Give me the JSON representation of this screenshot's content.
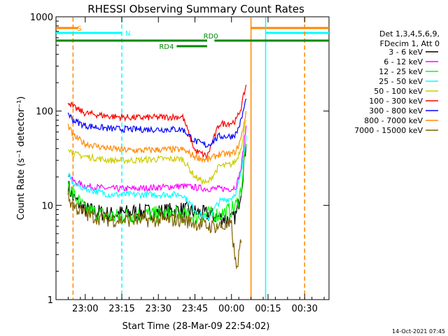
{
  "chart_data": {
    "type": "line",
    "title": "RHESSI Observing Summary Count Rates",
    "xlabel": "Start Time (28-Mar-09 22:54:02)",
    "ylabel": "Count Rate (s⁻¹ detector⁻¹)",
    "yscale": "log",
    "xlim": [
      -12,
      100
    ],
    "ylim": [
      1,
      1000
    ],
    "x_units": "minutes after 23:00",
    "x_ticks": [
      {
        "value": 0,
        "label": "23:00"
      },
      {
        "value": 15,
        "label": "23:15"
      },
      {
        "value": 30,
        "label": "23:30"
      },
      {
        "value": 45,
        "label": "23:45"
      },
      {
        "value": 60,
        "label": "00:00"
      },
      {
        "value": 75,
        "label": "00:15"
      },
      {
        "value": 90,
        "label": "00:30"
      }
    ],
    "y_ticks": [
      {
        "value": 1,
        "label": "1"
      },
      {
        "value": 10,
        "label": "10"
      },
      {
        "value": 100,
        "label": "100"
      },
      {
        "value": 1000,
        "label": "1000"
      }
    ],
    "legend": {
      "placement": "right",
      "header": [
        "Det 1,3,4,5,6,9,",
        "FDecim 1, Att 0"
      ]
    },
    "series": [
      {
        "name": "3 - 6 keV",
        "color": "#000000",
        "x": [
          -7,
          -5,
          0,
          10,
          20,
          30,
          40,
          45,
          50,
          55,
          60,
          62,
          64,
          66
        ],
        "y": [
          16,
          12,
          9,
          8,
          8.5,
          8.5,
          9,
          8.5,
          8,
          7.5,
          7,
          8,
          15,
          45
        ]
      },
      {
        "name": "6 - 12 keV",
        "color": "#ff00ff",
        "x": [
          -7,
          -5,
          0,
          10,
          20,
          30,
          40,
          45,
          50,
          55,
          60,
          62,
          64,
          66
        ],
        "y": [
          22,
          18,
          16,
          15,
          15,
          15.5,
          16,
          15.5,
          15,
          15,
          15,
          16,
          25,
          70
        ]
      },
      {
        "name": "12 - 25 keV",
        "color": "#00ff00",
        "x": [
          -7,
          -5,
          0,
          10,
          20,
          30,
          40,
          45,
          50,
          55,
          60,
          62,
          64,
          66
        ],
        "y": [
          17,
          13,
          9,
          7.5,
          8,
          8,
          8,
          7.5,
          8,
          8,
          9,
          10,
          15,
          45
        ]
      },
      {
        "name": "25 - 50 keV",
        "color": "#00ffff",
        "x": [
          -7,
          -5,
          0,
          10,
          20,
          30,
          40,
          45,
          50,
          55,
          60,
          62,
          64,
          66
        ],
        "y": [
          21,
          17,
          15,
          13,
          13,
          13,
          13,
          9,
          7,
          11,
          12,
          14,
          22,
          55
        ]
      },
      {
        "name": "50 - 100 keV",
        "color": "#cccc00",
        "x": [
          -7,
          -5,
          0,
          10,
          20,
          30,
          40,
          45,
          50,
          55,
          60,
          62,
          64,
          66
        ],
        "y": [
          42,
          35,
          33,
          30,
          30,
          31,
          31,
          20,
          17,
          26,
          27,
          30,
          42,
          80
        ]
      },
      {
        "name": "100 - 300 keV",
        "color": "#ff0000",
        "x": [
          -7,
          -5,
          0,
          10,
          20,
          30,
          40,
          45,
          50,
          55,
          60,
          62,
          64,
          66
        ],
        "y": [
          128,
          110,
          95,
          88,
          85,
          86,
          87,
          38,
          33,
          73,
          75,
          80,
          110,
          190
        ]
      },
      {
        "name": "300 - 800 keV",
        "color": "#0000ff",
        "x": [
          -7,
          -5,
          0,
          10,
          20,
          30,
          40,
          45,
          50,
          55,
          60,
          62,
          64,
          66
        ],
        "y": [
          95,
          80,
          70,
          65,
          64,
          64,
          64,
          48,
          43,
          54,
          54,
          58,
          80,
          135
        ]
      },
      {
        "name": "800 - 7000 keV",
        "color": "#ff8800",
        "x": [
          -7,
          -5,
          0,
          10,
          20,
          30,
          40,
          45,
          50,
          55,
          60,
          62,
          64,
          66
        ],
        "y": [
          70,
          55,
          45,
          40,
          38,
          39,
          39,
          33,
          30,
          35,
          35,
          38,
          52,
          100
        ]
      },
      {
        "name": "7000 - 15000 keV",
        "color": "#806000",
        "x": [
          -7,
          -5,
          0,
          10,
          20,
          30,
          40,
          45,
          50,
          55,
          60,
          62,
          63,
          64
        ],
        "y": [
          12,
          10,
          8,
          7,
          7,
          7,
          7,
          6.5,
          6,
          6,
          6,
          2,
          3,
          4
        ]
      }
    ],
    "flag_lines": [
      {
        "label": "S",
        "color": "#ff8800",
        "style": "dashed",
        "x": -5,
        "bar": [
          -12,
          -3
        ]
      },
      {
        "label": "N",
        "color": "#00ffff",
        "style": "dashed",
        "x": 15,
        "bar": [
          -12,
          15
        ]
      },
      {
        "label": "",
        "color": "#ff8800",
        "style": "solid",
        "x": 68,
        "bar": [
          68,
          100
        ]
      },
      {
        "label": "",
        "color": "#00ffff",
        "style": "solid",
        "x": 74,
        "bar": [
          74,
          100
        ]
      },
      {
        "label": "",
        "color": "#ff8800",
        "style": "dashed",
        "x": 90,
        "bar": null
      }
    ],
    "attenuator_bars": [
      {
        "label": "RD0",
        "color": "#008800",
        "x": [
          -12,
          100
        ],
        "gap": [
          50,
          53
        ]
      },
      {
        "label": "RD4",
        "color": "#008800",
        "x": [
          37.5,
          50
        ]
      }
    ]
  },
  "footer": {
    "timestamp": "14-Oct-2021 07:45"
  }
}
